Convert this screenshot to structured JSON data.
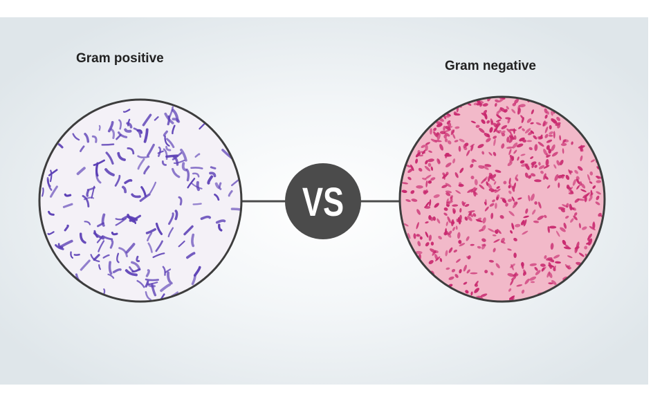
{
  "left_panel": {
    "title": "Gram positive",
    "stain_color": "#5b3fb5",
    "background_color": "#f4f1f7",
    "icon": "microscope-view-gram-positive-icon"
  },
  "right_panel": {
    "title": "Gram negative",
    "stain_color": "#c8286e",
    "background_color": "#f2b9c9",
    "icon": "microscope-view-gram-negative-icon"
  },
  "center_badge": {
    "text": "VS",
    "color": "#4b4b4b"
  }
}
